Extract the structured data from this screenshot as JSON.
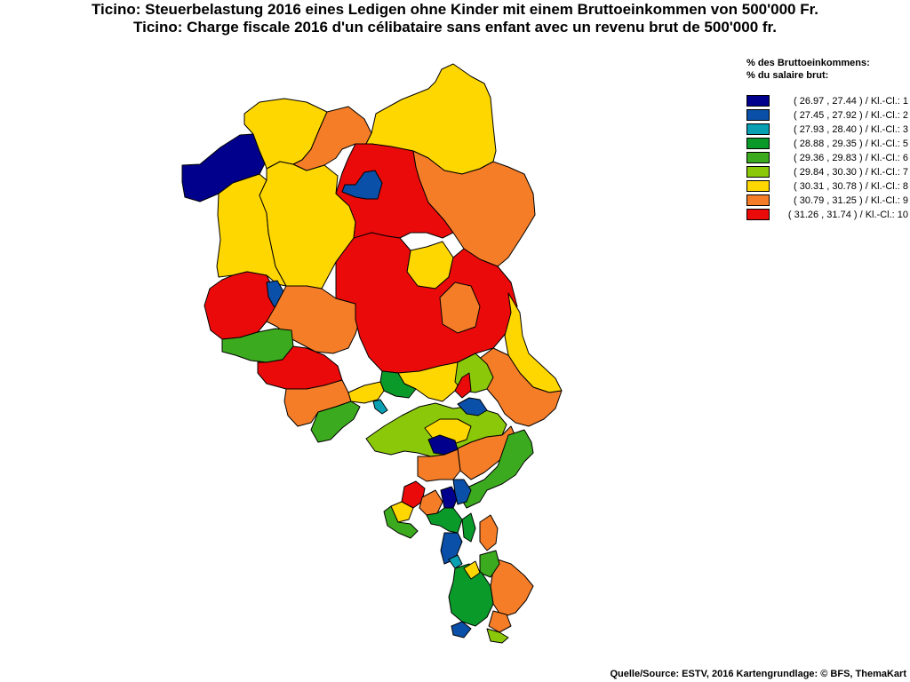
{
  "titles": {
    "line1": "Ticino: Steuerbelastung 2016 eines Ledigen ohne Kinder mit einem Bruttoeinkommen von 500'000 Fr.",
    "line2": "Ticino: Charge fiscale 2016 d'un célibataire sans enfant avec un revenu brut de 500'000 fr."
  },
  "legend": {
    "header_de": "% des Bruttoeinkommens:",
    "header_fr": "% du salaire brut:",
    "classes": [
      {
        "label": "( 26.97 , 27.44 ) / Kl.-Cl.: 1",
        "color": "#00008c"
      },
      {
        "label": "( 27.45 , 27.92 ) / Kl.-Cl.: 2",
        "color": "#0a4fa8"
      },
      {
        "label": "( 27.93 , 28.40 ) / Kl.-Cl.: 3",
        "color": "#0aa0b4"
      },
      {
        "label": "( 28.88 , 29.35 ) / Kl.-Cl.: 5",
        "color": "#0a9a2a"
      },
      {
        "label": "( 29.36 , 29.83 ) / Kl.-Cl.: 6",
        "color": "#3caa1e"
      },
      {
        "label": "( 29.84 , 30.30 ) / Kl.-Cl.: 7",
        "color": "#8cc80a"
      },
      {
        "label": "( 30.31 , 30.78 ) / Kl.-Cl.: 8",
        "color": "#ffd700"
      },
      {
        "label": "( 30.79 , 31.25 ) / Kl.-Cl.: 9",
        "color": "#f57d28"
      },
      {
        "label": "( 31.26 , 31.74 ) / Kl.-Cl.: 10",
        "color": "#eb0a0a"
      }
    ]
  },
  "source": "Quelle/Source: ESTV, 2016 Kartengrundlage: © BFS, ThemaKart"
}
